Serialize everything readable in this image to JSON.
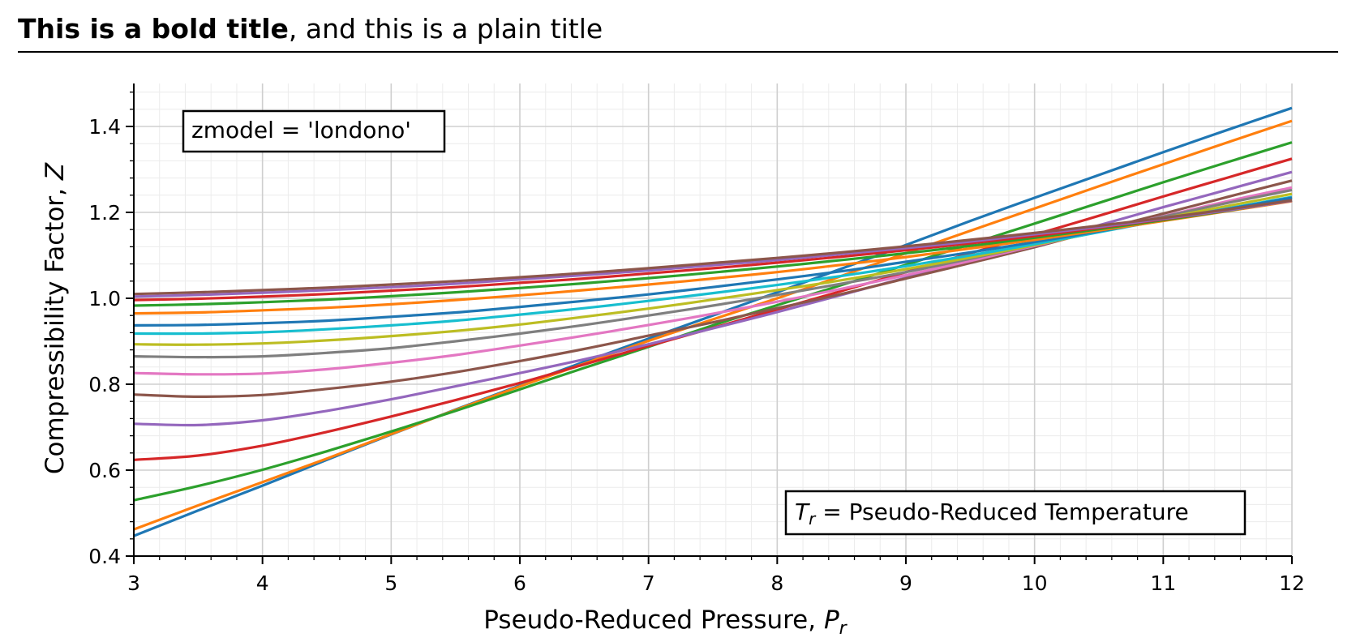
{
  "title": {
    "bold": "This is a bold title",
    "plain": ", and this is a plain title"
  },
  "chart_data": {
    "type": "line",
    "xlabel": "Pseudo-Reduced Pressure, P_r",
    "xlabel_main": "Pseudo-Reduced Pressure, ",
    "xlabel_symbol": "P",
    "xlabel_subscript": "r",
    "ylabel": "Compressibility Factor, Z",
    "ylabel_main": "Compressibility Factor, ",
    "ylabel_symbol": "Z",
    "xlim": [
      3,
      12
    ],
    "ylim": [
      0.4,
      1.5
    ],
    "xticks": [
      "3",
      "4",
      "5",
      "6",
      "7",
      "8",
      "9",
      "10",
      "11",
      "12"
    ],
    "yticks": [
      "0.4",
      "0.6",
      "0.8",
      "1.0",
      "1.2",
      "1.4"
    ],
    "grid": true,
    "annotations": {
      "model": "zmodel = 'londono'",
      "temperature_symbol": "T",
      "temperature_subscript": "r",
      "temperature_text": " = Pseudo-Reduced Temperature"
    },
    "x": [
      3,
      3.5,
      4,
      4.5,
      5,
      5.5,
      6,
      6.5,
      7,
      7.5,
      8,
      8.5,
      9,
      9.5,
      10,
      10.5,
      11,
      11.5,
      12
    ],
    "series": [
      {
        "color": "#1f77b4",
        "values": [
          0.447,
          0.506,
          0.564,
          0.624,
          0.683,
          0.741,
          0.797,
          0.852,
          0.906,
          0.96,
          1.014,
          1.069,
          1.124,
          1.18,
          1.234,
          1.287,
          1.34,
          1.392,
          1.443
        ]
      },
      {
        "color": "#ff7f0e",
        "values": [
          0.462,
          0.518,
          0.572,
          0.627,
          0.684,
          0.74,
          0.795,
          0.848,
          0.901,
          0.951,
          1.0,
          1.052,
          1.105,
          1.157,
          1.209,
          1.261,
          1.312,
          1.363,
          1.413
        ]
      },
      {
        "color": "#2ca02c",
        "values": [
          0.53,
          0.563,
          0.601,
          0.644,
          0.69,
          0.738,
          0.788,
          0.838,
          0.887,
          0.937,
          0.984,
          1.031,
          1.078,
          1.126,
          1.174,
          1.222,
          1.27,
          1.317,
          1.363
        ]
      },
      {
        "color": "#d62728",
        "values": [
          0.624,
          0.634,
          0.657,
          0.689,
          0.725,
          0.763,
          0.803,
          0.846,
          0.889,
          0.931,
          0.974,
          1.017,
          1.061,
          1.105,
          1.148,
          1.192,
          1.237,
          1.281,
          1.325
        ]
      },
      {
        "color": "#9467bd",
        "values": [
          0.708,
          0.705,
          0.716,
          0.738,
          0.765,
          0.795,
          0.826,
          0.858,
          0.893,
          0.93,
          0.968,
          1.008,
          1.048,
          1.089,
          1.129,
          1.17,
          1.212,
          1.253,
          1.294
        ]
      },
      {
        "color": "#8c564b",
        "values": [
          0.776,
          0.771,
          0.775,
          0.789,
          0.806,
          0.828,
          0.854,
          0.882,
          0.913,
          0.944,
          0.977,
          1.01,
          1.046,
          1.082,
          1.119,
          1.159,
          1.197,
          1.236,
          1.274
        ]
      },
      {
        "color": "#e377c2",
        "values": [
          0.826,
          0.823,
          0.825,
          0.835,
          0.85,
          0.868,
          0.89,
          0.913,
          0.938,
          0.964,
          0.992,
          1.022,
          1.054,
          1.087,
          1.122,
          1.157,
          1.191,
          1.226,
          1.258
        ]
      },
      {
        "color": "#7f7f7f",
        "values": [
          0.865,
          0.863,
          0.865,
          0.873,
          0.884,
          0.9,
          0.918,
          0.938,
          0.96,
          0.983,
          1.008,
          1.034,
          1.061,
          1.092,
          1.124,
          1.157,
          1.19,
          1.222,
          1.252
        ]
      },
      {
        "color": "#bcbd22",
        "values": [
          0.893,
          0.892,
          0.895,
          0.902,
          0.912,
          0.924,
          0.939,
          0.957,
          0.976,
          0.997,
          1.019,
          1.042,
          1.068,
          1.095,
          1.124,
          1.155,
          1.186,
          1.215,
          1.243
        ]
      },
      {
        "color": "#17becf",
        "values": [
          0.918,
          0.918,
          0.921,
          0.928,
          0.937,
          0.948,
          0.962,
          0.977,
          0.994,
          1.012,
          1.031,
          1.052,
          1.075,
          1.1,
          1.126,
          1.154,
          1.182,
          1.209,
          1.236
        ]
      },
      {
        "color": "#1f77b4",
        "values": [
          0.937,
          0.938,
          0.942,
          0.948,
          0.957,
          0.967,
          0.98,
          0.994,
          1.009,
          1.026,
          1.044,
          1.063,
          1.085,
          1.107,
          1.131,
          1.156,
          1.182,
          1.208,
          1.234
        ]
      },
      {
        "color": "#ff7f0e",
        "values": [
          0.965,
          0.967,
          0.972,
          0.978,
          0.986,
          0.996,
          1.007,
          1.019,
          1.032,
          1.046,
          1.061,
          1.078,
          1.096,
          1.116,
          1.136,
          1.158,
          1.18,
          1.203,
          1.226
        ]
      },
      {
        "color": "#2ca02c",
        "values": [
          0.983,
          0.986,
          0.991,
          0.997,
          1.005,
          1.014,
          1.024,
          1.035,
          1.047,
          1.06,
          1.074,
          1.089,
          1.105,
          1.122,
          1.141,
          1.161,
          1.182,
          1.204,
          1.228
        ]
      },
      {
        "color": "#d62728",
        "values": [
          0.996,
          0.999,
          1.004,
          1.01,
          1.018,
          1.026,
          1.036,
          1.046,
          1.058,
          1.07,
          1.083,
          1.097,
          1.112,
          1.128,
          1.145,
          1.164,
          1.184,
          1.205,
          1.228
        ]
      },
      {
        "color": "#9467bd",
        "values": [
          1.004,
          1.008,
          1.013,
          1.019,
          1.026,
          1.034,
          1.044,
          1.054,
          1.065,
          1.077,
          1.089,
          1.103,
          1.117,
          1.132,
          1.149,
          1.166,
          1.185,
          1.205,
          1.227
        ]
      },
      {
        "color": "#8c564b",
        "values": [
          1.01,
          1.014,
          1.019,
          1.025,
          1.032,
          1.04,
          1.049,
          1.059,
          1.07,
          1.082,
          1.094,
          1.107,
          1.121,
          1.136,
          1.152,
          1.169,
          1.187,
          1.207,
          1.228
        ]
      }
    ]
  }
}
